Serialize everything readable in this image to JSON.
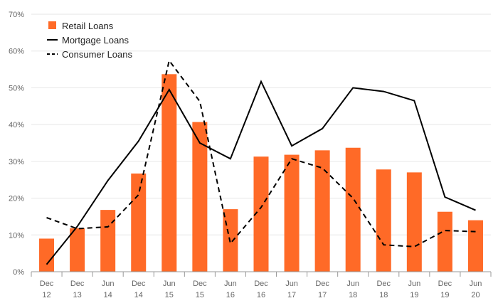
{
  "chart_data": {
    "type": "bar",
    "categories": [
      [
        "Dec",
        "12"
      ],
      [
        "Dec",
        "13"
      ],
      [
        "Jun",
        "14"
      ],
      [
        "Dec",
        "14"
      ],
      [
        "Jun",
        "15"
      ],
      [
        "Dec",
        "15"
      ],
      [
        "Jun",
        "16"
      ],
      [
        "Dec",
        "16"
      ],
      [
        "Jun",
        "17"
      ],
      [
        "Dec",
        "17"
      ],
      [
        "Jun",
        "18"
      ],
      [
        "Dec",
        "18"
      ],
      [
        "Jun",
        "19"
      ],
      [
        "Dec",
        "19"
      ],
      [
        "Jun",
        "20"
      ]
    ],
    "series": [
      {
        "name": "Retail Loans",
        "type": "bar",
        "color": "#ff6a27",
        "values": [
          9,
          11.8,
          16.8,
          26.7,
          53.7,
          40.7,
          17,
          31.3,
          31.8,
          33,
          33.7,
          27.8,
          27,
          16.3,
          14
        ]
      },
      {
        "name": "Mortgage Loans",
        "type": "line",
        "style": "solid",
        "color": "#000000",
        "values": [
          2,
          12.3,
          24.8,
          35.5,
          49.5,
          35,
          30.7,
          51.7,
          34.2,
          38.9,
          50,
          49,
          46.5,
          20.3,
          16.7
        ]
      },
      {
        "name": "Consumer Loans",
        "type": "line",
        "style": "dashed",
        "color": "#000000",
        "values": [
          14.7,
          11.7,
          12.2,
          20.9,
          57.4,
          46.3,
          7.7,
          17.5,
          30.7,
          28.2,
          20,
          7.3,
          6.8,
          11.2,
          10.9
        ]
      }
    ],
    "y_ticks": [
      "0%",
      "10%",
      "20%",
      "30%",
      "40%",
      "50%",
      "60%",
      "70%"
    ],
    "ylim": [
      0,
      70
    ],
    "grid": true,
    "legend_position": "top-left"
  }
}
